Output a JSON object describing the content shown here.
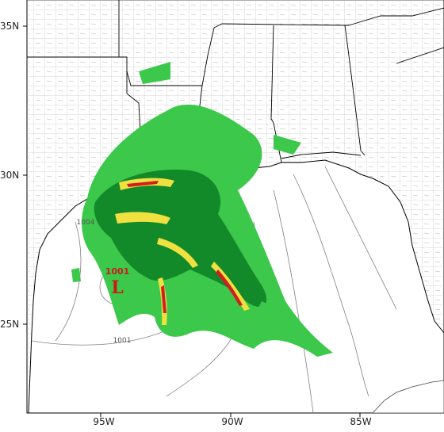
{
  "map": {
    "colors": {
      "land": "#ffffff",
      "water": "#ffffff",
      "state_border": "#000000",
      "county_border": "#9a9a9a",
      "isobar": "#808080",
      "precip_light": "#3cc84a",
      "precip_medium": "#138a2a",
      "precip_heavy": "#f0e040",
      "precip_very_heavy": "#d02020",
      "low_marker": "#cc1a1a"
    },
    "lat_labels": [
      "35N",
      "30N",
      "25N"
    ],
    "lon_labels": [
      "95W",
      "90W",
      "85W"
    ],
    "low_pressure": {
      "symbol": "L",
      "value": "1001"
    },
    "isobar_labels": [
      "1004",
      "1001"
    ]
  }
}
